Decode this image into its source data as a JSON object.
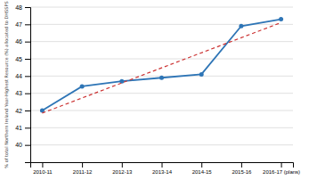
{
  "chart_data": {
    "type": "line",
    "ylabel": "% of total Northern Ireland Year-Highest Resource (%) allocated to DHSSPS",
    "categories": [
      "2010-11",
      "2011-12",
      "2012-13",
      "2013-14",
      "2014-15",
      "2015-16",
      "2016-17 (plans)"
    ],
    "series": [
      {
        "values": [
          42.0,
          43.4,
          43.7,
          43.9,
          44.1,
          46.9,
          47.3
        ],
        "color": "#2E75B6",
        "marker": "circle"
      },
      {
        "x": [
          "2010-11",
          "2016-17 (plans)"
        ],
        "values": [
          41.85,
          47.1
        ],
        "color": "#CC3333",
        "line_style": "dashed"
      }
    ],
    "ylim": [
      39,
      48
    ],
    "yticks": [
      40,
      41,
      42,
      43,
      44,
      45,
      46,
      47,
      48
    ],
    "grid": true
  }
}
